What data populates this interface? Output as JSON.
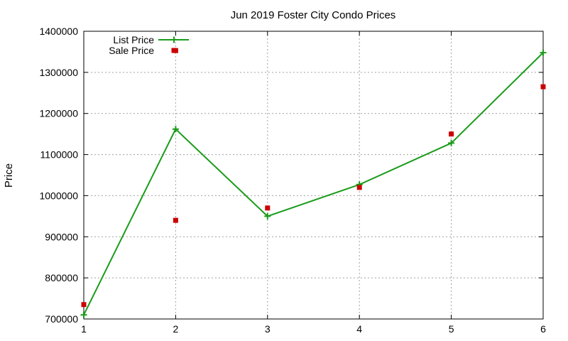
{
  "chart_data": {
    "type": "line",
    "title": "Jun 2019 Foster City Condo Prices",
    "xlabel": "",
    "ylabel": "Price",
    "x": [
      1,
      2,
      3,
      4,
      5,
      6
    ],
    "xlim": [
      1,
      6
    ],
    "ylim": [
      700000,
      1400000
    ],
    "yticks": [
      "700000",
      "800000",
      "900000",
      "1000000",
      "1100000",
      "1200000",
      "1300000",
      "1400000"
    ],
    "xticks": [
      "1",
      "2",
      "3",
      "4",
      "5",
      "6"
    ],
    "grid": true,
    "legend_position": "top-left",
    "series": [
      {
        "name": "List Price",
        "style": "line+plus",
        "color": "#1a9c1a",
        "values": [
          710000,
          1162000,
          950000,
          1027000,
          1128000,
          1348000
        ]
      },
      {
        "name": "Sale Price",
        "style": "square-points",
        "color": "#cc0000",
        "points": [
          [
            1,
            735000
          ],
          [
            2,
            1353000
          ],
          [
            2,
            940000
          ],
          [
            3,
            970000
          ],
          [
            4,
            1020000
          ],
          [
            5,
            1150000
          ],
          [
            6,
            1265000
          ]
        ]
      }
    ]
  }
}
